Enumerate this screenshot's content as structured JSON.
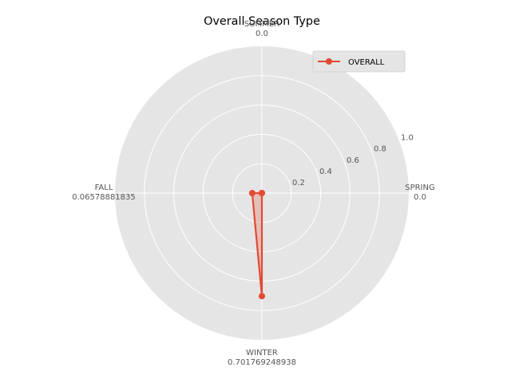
{
  "chart_data": {
    "type": "radar",
    "title": "Overall Season Type",
    "categories": [
      "SPRING",
      "SUMMER",
      "FALL",
      "WINTER"
    ],
    "category_value_labels": [
      "0.0",
      "0.0",
      "0.06578881835",
      "0.701769248938"
    ],
    "series": [
      {
        "name": "OVERALL",
        "values": [
          0.0,
          0.0,
          0.06578881835,
          0.701769248938
        ],
        "color": "#e24a33"
      }
    ],
    "rlim": [
      0,
      1.0
    ],
    "rticks": [
      0.2,
      0.4,
      0.6,
      0.8,
      1.0
    ],
    "rtick_labels": [
      "0.2",
      "0.4",
      "0.6",
      "0.8",
      "1.0"
    ],
    "grid": true,
    "legend_position": "top-right",
    "background_color": "#e5e5e5",
    "grid_color": "#ffffff"
  }
}
